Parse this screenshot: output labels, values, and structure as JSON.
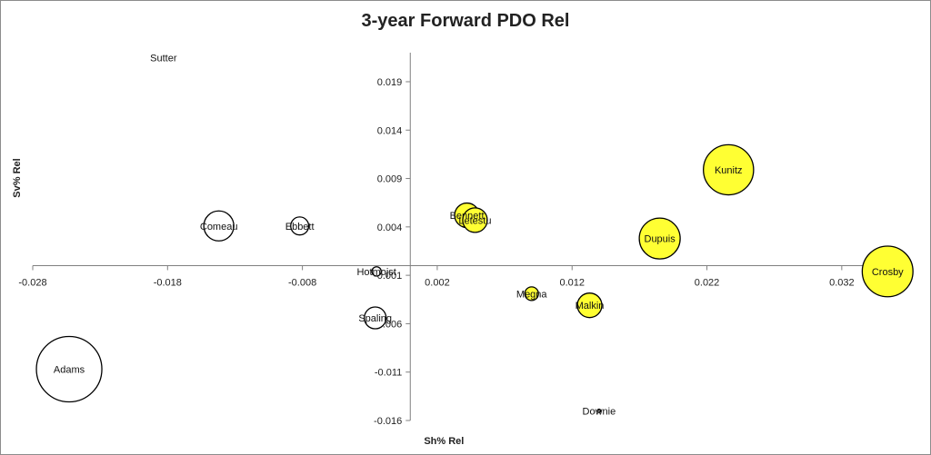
{
  "chart_data": {
    "type": "scatter",
    "subtype": "bubble",
    "title": "3-year Forward PDO Rel",
    "xlabel": "Sh% Rel",
    "ylabel": "Sv% Rel",
    "xlim": [
      -0.028,
      0.037
    ],
    "ylim": [
      -0.016,
      0.022
    ],
    "xticks": [
      -0.028,
      -0.018,
      -0.008,
      0.002,
      0.012,
      0.022,
      0.032
    ],
    "xtick_labels": [
      "-0.028",
      "-0.018",
      "-0.008",
      "0.002",
      "0.012",
      "0.022",
      "0.032"
    ],
    "yticks": [
      -0.016,
      -0.011,
      -0.006,
      -0.001,
      0.004,
      0.009,
      0.014,
      0.019
    ],
    "ytick_labels": [
      "-0.016",
      "-0.011",
      "-0.006",
      "-0.001",
      "0.004",
      "0.009",
      "0.014",
      "0.019"
    ],
    "grid": false,
    "legend": "none",
    "colors": {
      "positive": "#ffff33",
      "negative": "#ffffff",
      "stroke": "#000000",
      "axis": "#808080"
    },
    "points": [
      {
        "name": "Sutter",
        "x": -0.0183,
        "y": 0.0215,
        "size": 0.0,
        "fill": "#ffffff"
      },
      {
        "name": "Adams",
        "x": -0.0253,
        "y": -0.0107,
        "size": 0.012,
        "fill": "#ffffff"
      },
      {
        "name": "Comeau",
        "x": -0.0142,
        "y": 0.0041,
        "size": 0.0055,
        "fill": "#ffffff"
      },
      {
        "name": "Ebbett",
        "x": -0.0082,
        "y": 0.0041,
        "size": 0.0033,
        "fill": "#ffffff"
      },
      {
        "name": "Hotmojst",
        "x": -0.0025,
        "y": -0.0006,
        "size": 0.0017,
        "fill": "#ffffff"
      },
      {
        "name": "Spaling",
        "x": -0.0026,
        "y": -0.0054,
        "size": 0.004,
        "fill": "#ffffff"
      },
      {
        "name": "Bennett",
        "x": 0.0042,
        "y": 0.0052,
        "size": 0.0045,
        "fill": "#ffff33"
      },
      {
        "name": "Letestu",
        "x": 0.0048,
        "y": 0.0047,
        "size": 0.0045,
        "fill": "#ffff33"
      },
      {
        "name": "Megna",
        "x": 0.009,
        "y": -0.0029,
        "size": 0.0025,
        "fill": "#ffff33"
      },
      {
        "name": "Malkin",
        "x": 0.0133,
        "y": -0.0041,
        "size": 0.0045,
        "fill": "#ffff33"
      },
      {
        "name": "Downie",
        "x": 0.014,
        "y": -0.015,
        "size": 0.0006,
        "fill": "#ffffff"
      },
      {
        "name": "Dupuis",
        "x": 0.0185,
        "y": 0.0028,
        "size": 0.0075,
        "fill": "#ffff33"
      },
      {
        "name": "Kunitz",
        "x": 0.0236,
        "y": 0.0099,
        "size": 0.0092,
        "fill": "#ffff33"
      },
      {
        "name": "Crosby",
        "x": 0.0354,
        "y": -0.0006,
        "size": 0.0093,
        "fill": "#ffff33"
      }
    ]
  },
  "point_labels": {
    "Sutter": "Sutter",
    "Adams": "Adams",
    "Comeau": "Comeau",
    "Ebbett": "Ebbett",
    "Hotmojst": "Hotmojst",
    "Spaling": "Spaling",
    "Bennett": "Bennett",
    "Letestu": "Letestu",
    "Megna": "Megna",
    "Malkin": "Malkin",
    "Downie": "Downie",
    "Dupuis": "Dupuis",
    "Kunitz": "Kunitz",
    "Crosby": "Crosby"
  }
}
